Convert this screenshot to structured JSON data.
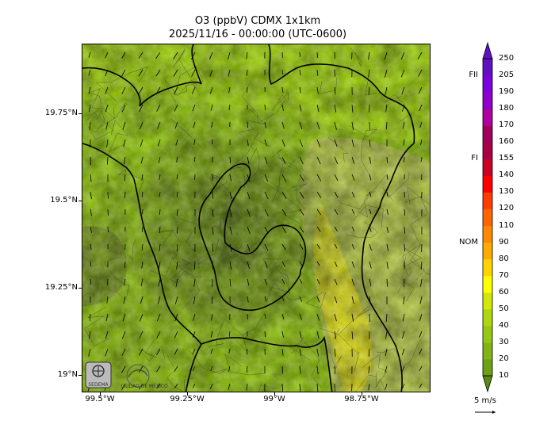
{
  "title": {
    "line1": "O3 (ppbV) CDMX 1x1km",
    "line2": "2025/11/16 - 00:00:00 (UTC-0600)"
  },
  "map": {
    "variable": "O3 (ppbV)",
    "domain": "CDMX 1x1km",
    "lat_ticks": [
      "19.75°N",
      "19.5°N",
      "19.25°N",
      "19°N"
    ],
    "lon_ticks": [
      "99.5°W",
      "99.25°W",
      "99°W",
      "98.75°W"
    ],
    "logos": [
      "SEDEMA",
      "CIUDAD DE MÉXICO"
    ]
  },
  "colorbar": {
    "levels": [
      "250",
      "205",
      "190",
      "180",
      "170",
      "160",
      "155",
      "140",
      "130",
      "120",
      "110",
      "90",
      "80",
      "70",
      "60",
      "50",
      "40",
      "30",
      "20",
      "10"
    ],
    "markers": [
      {
        "label": "FII",
        "level": 205
      },
      {
        "label": "FI",
        "level": 155
      },
      {
        "label": "NOM",
        "level": 90
      }
    ],
    "colors": [
      "#5a8a10",
      "#6da012",
      "#82b514",
      "#96c812",
      "#b0d60e",
      "#d2e80a",
      "#ffff00",
      "#ffd400",
      "#ffaa00",
      "#ff8800",
      "#ff6600",
      "#ff3c00",
      "#ff0000",
      "#cc0022",
      "#aa0044",
      "#a0005a",
      "#b000a0",
      "#9000cc",
      "#7a00e0",
      "#6010c0"
    ]
  },
  "wind_reference": {
    "label": "5 m/s"
  }
}
